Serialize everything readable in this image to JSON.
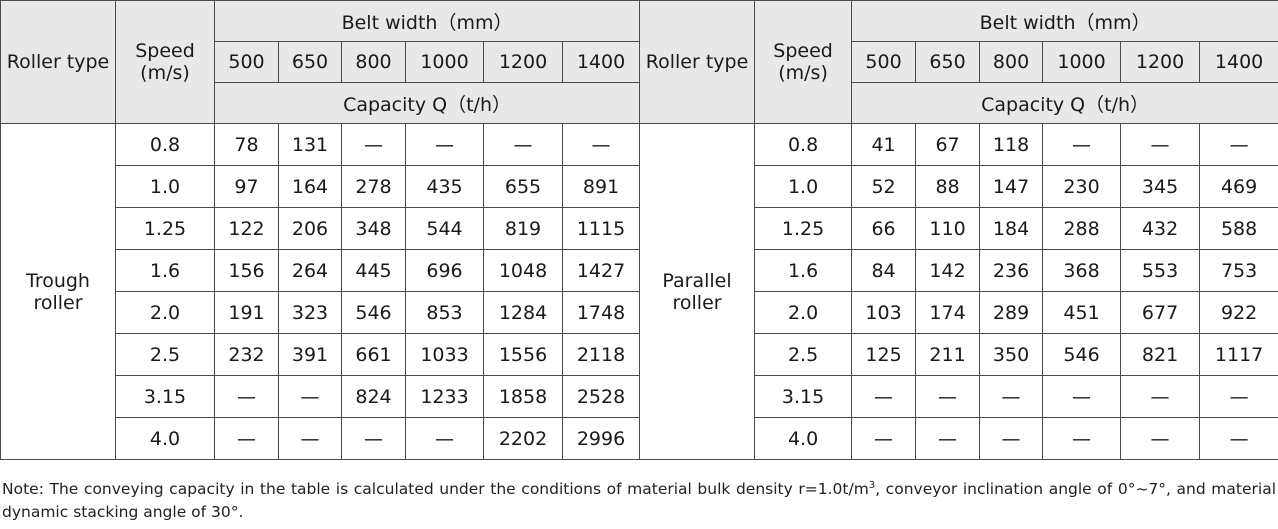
{
  "header": {
    "roller_type": "Roller type",
    "speed_line1": "Speed",
    "speed_line2": "(m/s)",
    "belt_width": "Belt width（mm）",
    "widths": [
      "500",
      "650",
      "800",
      "1000",
      "1200",
      "1400"
    ],
    "capacity": "Capacity Q（t/h）"
  },
  "groups": [
    {
      "label_line1": "Trough",
      "label_line2": "roller",
      "rows": [
        {
          "speed": "0.8",
          "values": [
            "78",
            "131",
            "—",
            "—",
            "—",
            "—"
          ]
        },
        {
          "speed": "1.0",
          "values": [
            "97",
            "164",
            "278",
            "435",
            "655",
            "891"
          ]
        },
        {
          "speed": "1.25",
          "values": [
            "122",
            "206",
            "348",
            "544",
            "819",
            "1115"
          ]
        },
        {
          "speed": "1.6",
          "values": [
            "156",
            "264",
            "445",
            "696",
            "1048",
            "1427"
          ]
        },
        {
          "speed": "2.0",
          "values": [
            "191",
            "323",
            "546",
            "853",
            "1284",
            "1748"
          ]
        },
        {
          "speed": "2.5",
          "values": [
            "232",
            "391",
            "661",
            "1033",
            "1556",
            "2118"
          ]
        },
        {
          "speed": "3.15",
          "values": [
            "—",
            "—",
            "824",
            "1233",
            "1858",
            "2528"
          ]
        },
        {
          "speed": "4.0",
          "values": [
            "—",
            "—",
            "—",
            "—",
            "2202",
            "2996"
          ]
        }
      ]
    },
    {
      "label_line1": "Parallel",
      "label_line2": "roller",
      "rows": [
        {
          "speed": "0.8",
          "values": [
            "41",
            "67",
            "118",
            "—",
            "—",
            "—"
          ]
        },
        {
          "speed": "1.0",
          "values": [
            "52",
            "88",
            "147",
            "230",
            "345",
            "469"
          ]
        },
        {
          "speed": "1.25",
          "values": [
            "66",
            "110",
            "184",
            "288",
            "432",
            "588"
          ]
        },
        {
          "speed": "1.6",
          "values": [
            "84",
            "142",
            "236",
            "368",
            "553",
            "753"
          ]
        },
        {
          "speed": "2.0",
          "values": [
            "103",
            "174",
            "289",
            "451",
            "677",
            "922"
          ]
        },
        {
          "speed": "2.5",
          "values": [
            "125",
            "211",
            "350",
            "546",
            "821",
            "1117"
          ]
        },
        {
          "speed": "3.15",
          "values": [
            "—",
            "—",
            "—",
            "—",
            "—",
            "—"
          ]
        },
        {
          "speed": "4.0",
          "values": [
            "—",
            "—",
            "—",
            "—",
            "—",
            "—"
          ]
        }
      ]
    }
  ],
  "note": {
    "part1": "Note: The conveying capacity in the table is calculated under the conditions of material bulk density r=1.0t/m",
    "superscript": "3",
    "part2": ", conveyor inclination angle of 0°~7°, and material dynamic stacking angle of 30°."
  }
}
